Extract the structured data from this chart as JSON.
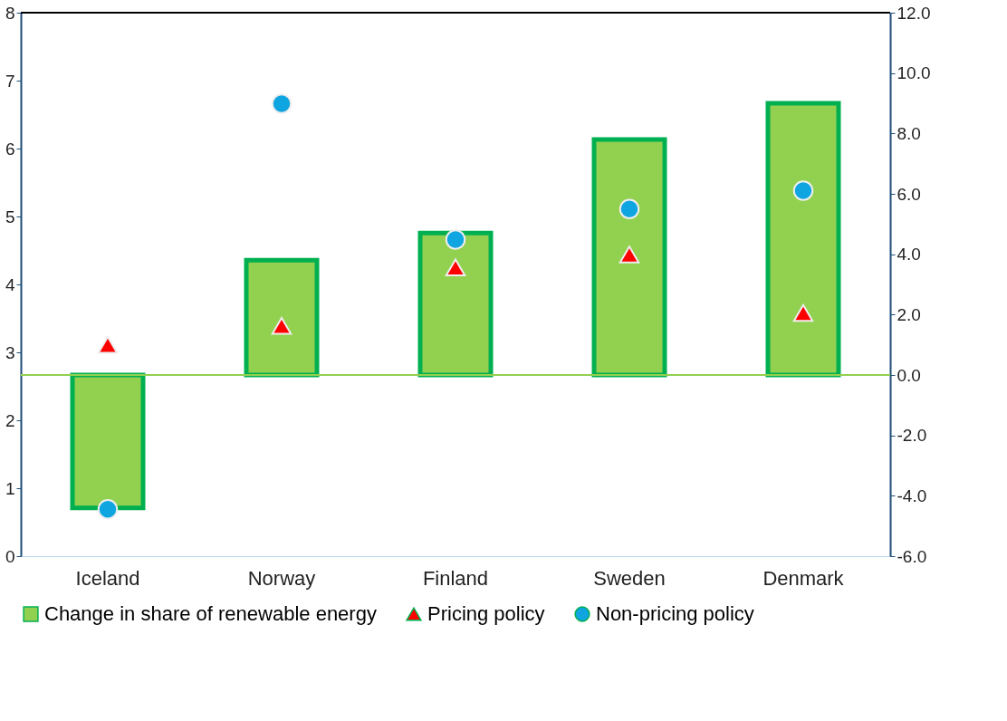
{
  "chart_data": {
    "type": "bar",
    "categories": [
      "Iceland",
      "Norway",
      "Finland",
      "Sweden",
      "Denmark"
    ],
    "series": [
      {
        "name": "Change in share of renewable energy",
        "type": "bar",
        "axis": "y2",
        "color": "#92d050",
        "values": [
          -4.4,
          3.8,
          4.7,
          7.8,
          9.0
        ]
      },
      {
        "name": "Pricing policy",
        "type": "scatter",
        "marker": "triangle",
        "color": "#ff0000",
        "values": [
          3.11,
          3.39,
          4.25,
          4.44,
          3.58
        ]
      },
      {
        "name": "Non-pricing policy",
        "type": "scatter",
        "marker": "circle",
        "color": "#0ea5e0",
        "values": [
          0.69,
          6.66,
          4.66,
          5.11,
          5.38
        ]
      }
    ],
    "ylim": [
      0,
      8
    ],
    "yticks": [
      0,
      1,
      2,
      3,
      4,
      5,
      6,
      7,
      8
    ],
    "y2lim": [
      -6,
      12
    ],
    "y2ticks": [
      {
        "value": -6,
        "label": "-6.0"
      },
      {
        "value": -4,
        "label": "-4.0"
      },
      {
        "value": -2,
        "label": "-2.0"
      },
      {
        "value": 0,
        "label": "0.0"
      },
      {
        "value": 2,
        "label": "2.0"
      },
      {
        "value": 4,
        "label": "4.0"
      },
      {
        "value": 6,
        "label": "6.0"
      },
      {
        "value": 8,
        "label": "8.0"
      },
      {
        "value": 10,
        "label": "10.0"
      },
      {
        "value": 12,
        "label": "12.0"
      }
    ],
    "ref_lines": [
      {
        "axis": "y2",
        "value": 0,
        "color": "#92d050"
      }
    ],
    "legend": "bottom",
    "grid": false
  }
}
